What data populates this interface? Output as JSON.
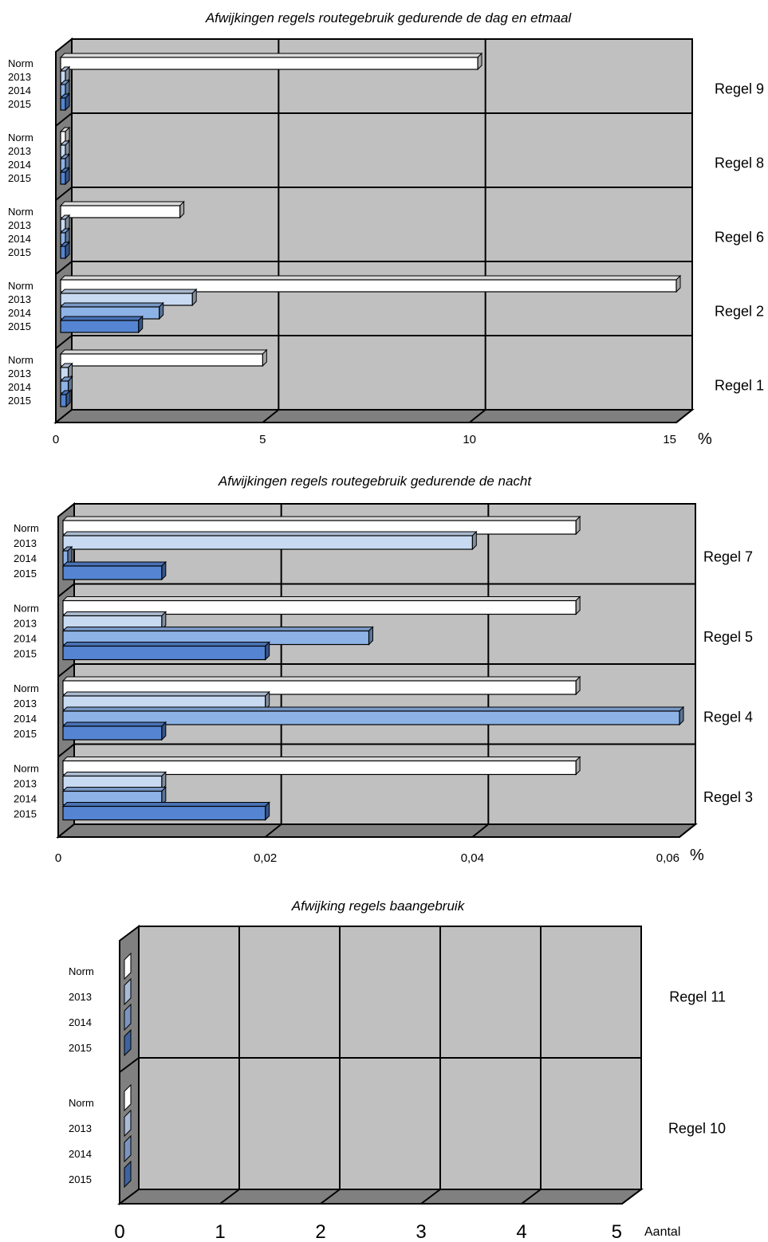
{
  "chart_data": [
    {
      "type": "bar",
      "orientation": "horizontal",
      "title": "Afwijkingen regels routegebruik gedurende de dag en etmaal",
      "unit": "%",
      "xlim": [
        0,
        15
      ],
      "ticks": [
        "0",
        "5",
        "10",
        "15"
      ],
      "grid": true,
      "series_names": [
        "Norm",
        "2013",
        "2014",
        "2015"
      ],
      "groups": [
        {
          "name": "Regel 9",
          "values": [
            10.2,
            0.05,
            0.05,
            0.05
          ]
        },
        {
          "name": "Regel 8",
          "values": [
            0.05,
            0.0,
            0.0,
            0.0
          ]
        },
        {
          "name": "Regel 6",
          "values": [
            3.0,
            0.1,
            0.2,
            0.2
          ]
        },
        {
          "name": "Regel 2",
          "values": [
            15.0,
            3.3,
            2.5,
            2.0
          ]
        },
        {
          "name": "Regel 1",
          "values": [
            5.0,
            0.3,
            0.3,
            0.25
          ]
        }
      ],
      "colors": [
        "#ffffff",
        "#c8daf2",
        "#8db2e6",
        "#5585d2"
      ]
    },
    {
      "type": "bar",
      "orientation": "horizontal",
      "title": "Afwijkingen regels routegebruik gedurende de nacht",
      "unit": "%",
      "xlim": [
        0,
        0.06
      ],
      "ticks": [
        "0",
        "0,02",
        "0,04",
        "0,06"
      ],
      "grid": true,
      "series_names": [
        "Norm",
        "2013",
        "2014",
        "2015"
      ],
      "groups": [
        {
          "name": "Regel 7",
          "values": [
            0.05,
            0.04,
            0.0,
            0.01
          ]
        },
        {
          "name": "Regel 5",
          "values": [
            0.05,
            0.01,
            0.03,
            0.02
          ]
        },
        {
          "name": "Regel 4",
          "values": [
            0.05,
            0.02,
            0.06,
            0.01
          ]
        },
        {
          "name": "Regel 3",
          "values": [
            0.05,
            0.01,
            0.01,
            0.02
          ]
        }
      ],
      "colors": [
        "#ffffff",
        "#c8daf2",
        "#8db2e6",
        "#5585d2"
      ]
    },
    {
      "type": "bar",
      "orientation": "horizontal",
      "title": "Afwijking regels baangebruik",
      "unit": "Aantal",
      "xlim": [
        0,
        5
      ],
      "ticks": [
        "0",
        "1",
        "2",
        "3",
        "4",
        "5"
      ],
      "grid": true,
      "series_names": [
        "Norm",
        "2013",
        "2014",
        "2015"
      ],
      "groups": [
        {
          "name": "Regel 11",
          "values": [
            0,
            0,
            0,
            0
          ]
        },
        {
          "name": "Regel 10",
          "values": [
            0,
            0,
            0,
            0
          ]
        }
      ],
      "colors": [
        "#ffffff",
        "#a9bbd6",
        "#7a96c0",
        "#3d63a0"
      ]
    }
  ]
}
